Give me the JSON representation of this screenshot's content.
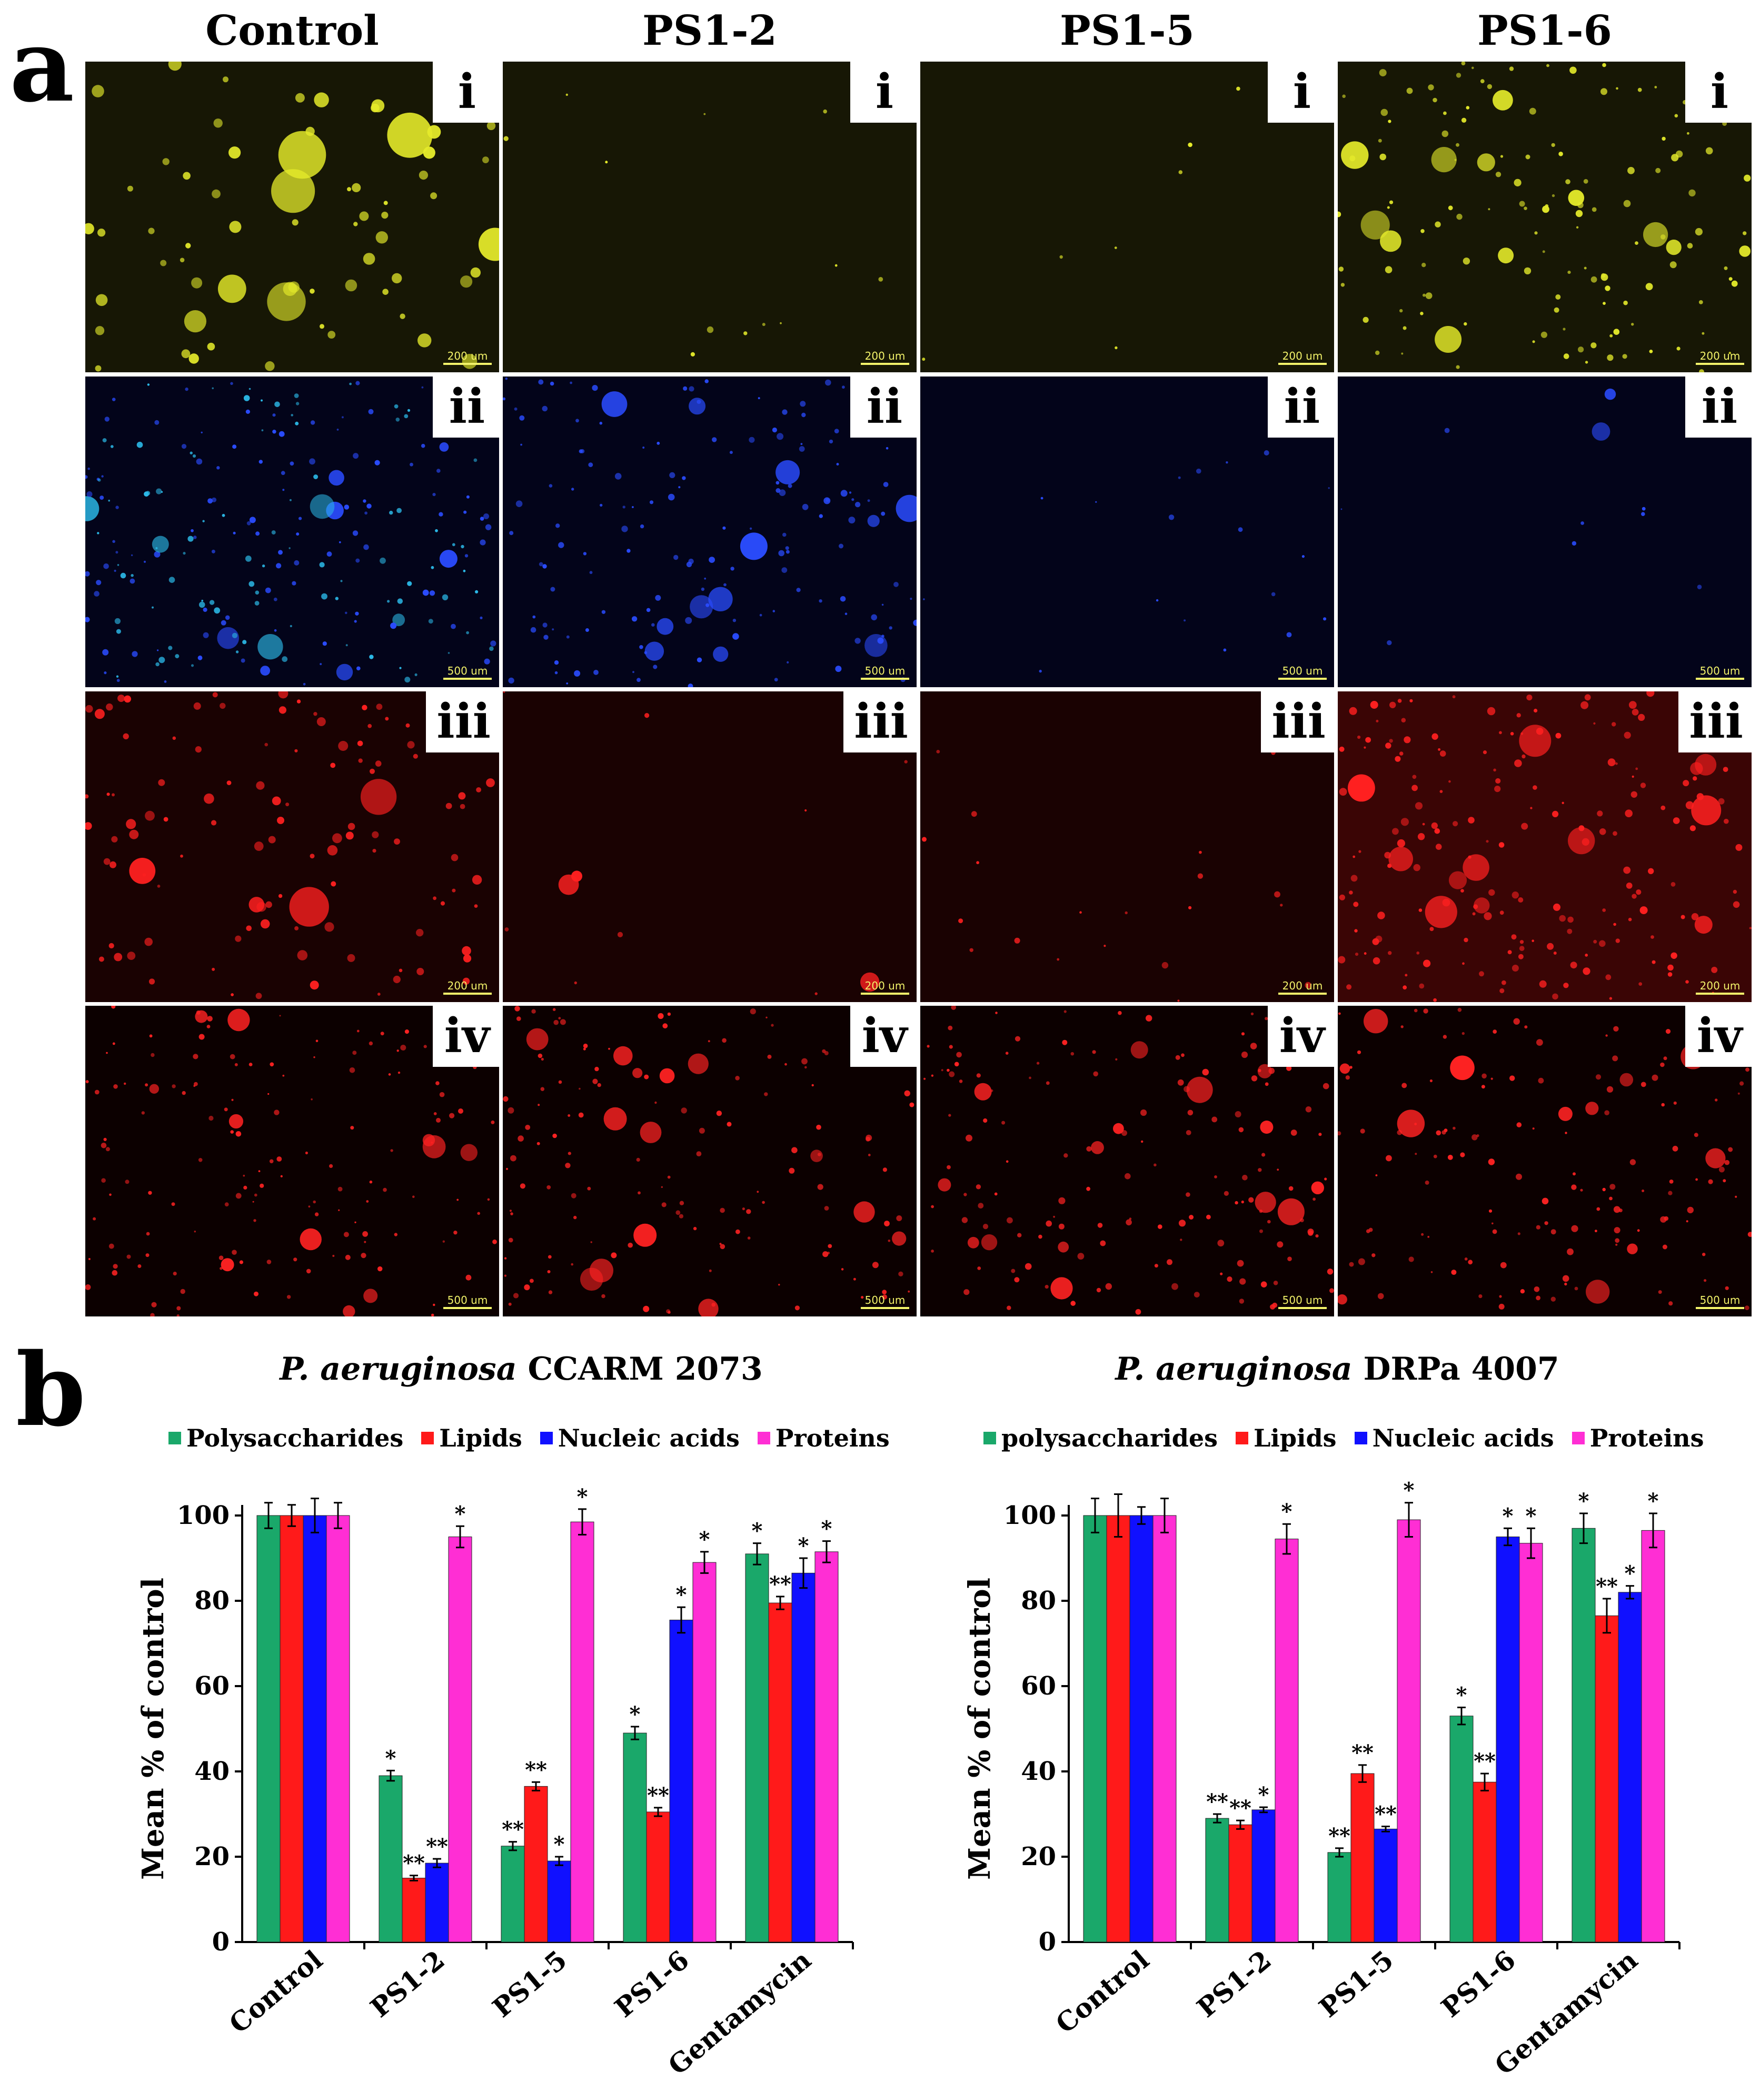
{
  "panel_a": {
    "letter": "a",
    "columns": [
      "Control",
      "PS1-2",
      "PS1-5",
      "PS1-6"
    ],
    "rows": [
      {
        "label": "i",
        "scale": [
          "200 um",
          "200 um",
          "200 um",
          "200 um"
        ],
        "color": "#e4ea2a",
        "bg": "#171705"
      },
      {
        "label": "ii",
        "scale": [
          "500 um",
          "500 um",
          "500 um",
          "500 um"
        ],
        "color": "#2a4cff",
        "bg": "#03041a"
      },
      {
        "label": "iii",
        "scale": [
          "200 um",
          "200 um",
          "200 um",
          "200 um"
        ],
        "color": "#ff2020",
        "bg": "#1a0202"
      },
      {
        "label": "iv",
        "scale": [
          "500 um",
          "500 um",
          "500 um",
          "500 um"
        ],
        "color": "#ff2222",
        "bg": "#0c0000"
      }
    ]
  },
  "panel_b": {
    "letter": "b",
    "ylabel": "Mean % of control",
    "colors": {
      "polysaccharides": "#1aa86a",
      "lipids": "#ff1a1a",
      "nucleic": "#1010ff",
      "proteins": "#ff2ed4"
    }
  },
  "chart_data": [
    {
      "type": "bar",
      "title_italic": "P. aeruginosa",
      "title_rest": " CCARM 2073",
      "legend": [
        "Polysaccharides",
        "Lipids",
        "Nucleic acids",
        "Proteins"
      ],
      "ylabel": "Mean % of control",
      "ylim": [
        0,
        100
      ],
      "yticks": [
        "0",
        "20",
        "40",
        "60",
        "80",
        "100"
      ],
      "categories": [
        "Control",
        "PS1-2",
        "PS1-5",
        "PS1-6",
        "Gentamycin"
      ],
      "series": [
        {
          "name": "Polysaccharides",
          "values": [
            100,
            39,
            22.5,
            49,
            91
          ],
          "errors": [
            3,
            1.2,
            1,
            1.5,
            2.5
          ],
          "sig": [
            "",
            "*",
            "**",
            "*",
            "*"
          ]
        },
        {
          "name": "Lipids",
          "values": [
            100,
            15,
            36.5,
            30.5,
            79.5
          ],
          "errors": [
            2.5,
            0.6,
            1,
            1,
            1.5
          ],
          "sig": [
            "",
            "**",
            "**",
            "**",
            "**"
          ]
        },
        {
          "name": "Nucleic acids",
          "values": [
            100,
            18.5,
            19,
            75.5,
            86.5
          ],
          "errors": [
            4,
            1,
            1,
            3,
            3.5
          ],
          "sig": [
            "",
            "**",
            "*",
            "*",
            "*"
          ]
        },
        {
          "name": "Proteins",
          "values": [
            100,
            95,
            98.5,
            89,
            91.5
          ],
          "errors": [
            3,
            2.5,
            3,
            2.5,
            2.5
          ],
          "sig": [
            "",
            "*",
            "*",
            "*",
            "*"
          ]
        }
      ]
    },
    {
      "type": "bar",
      "title_italic": "P. aeruginosa",
      "title_rest": " DRPa 4007",
      "legend": [
        "polysaccharides",
        "Lipids",
        "Nucleic acids",
        "Proteins"
      ],
      "ylabel": "Mean % of control",
      "ylim": [
        0,
        100
      ],
      "yticks": [
        "0",
        "20",
        "40",
        "60",
        "80",
        "100"
      ],
      "categories": [
        "Control",
        "PS1-2",
        "PS1-5",
        "PS1-6",
        "Gentamycin"
      ],
      "series": [
        {
          "name": "polysaccharides",
          "values": [
            100,
            29,
            21,
            53,
            97
          ],
          "errors": [
            4,
            1,
            1,
            2,
            3.5
          ],
          "sig": [
            "",
            "**",
            "**",
            "*",
            "*"
          ]
        },
        {
          "name": "Lipids",
          "values": [
            100,
            27.5,
            39.5,
            37.5,
            76.5
          ],
          "errors": [
            5,
            1,
            2,
            2,
            4
          ],
          "sig": [
            "",
            "**",
            "**",
            "**",
            "**"
          ]
        },
        {
          "name": "Nucleic acids",
          "values": [
            100,
            31,
            26.5,
            95,
            82
          ],
          "errors": [
            2,
            0.6,
            0.6,
            2,
            1.5
          ],
          "sig": [
            "",
            "*",
            "**",
            "*",
            "*"
          ]
        },
        {
          "name": "Proteins",
          "values": [
            100,
            94.5,
            99,
            93.5,
            96.5
          ],
          "errors": [
            4,
            3.5,
            4,
            3.5,
            4
          ],
          "sig": [
            "",
            "*",
            "*",
            "*",
            "*"
          ]
        }
      ]
    }
  ]
}
